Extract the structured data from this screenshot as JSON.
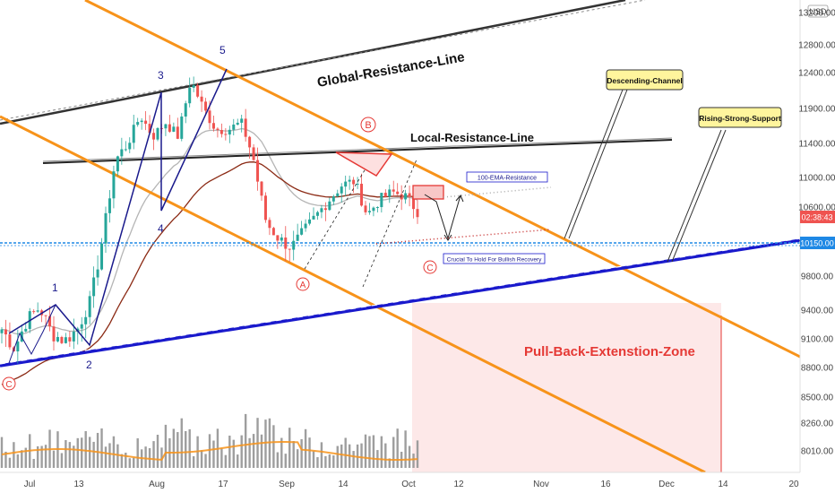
{
  "chart_data": {
    "type": "candlestick",
    "currency": "USD",
    "price_axis": {
      "ticks": [
        "13200.00",
        "12800.00",
        "12400.00",
        "11900.00",
        "11400.00",
        "11000.00",
        "10600.00",
        "10150.00",
        "9800.00",
        "9400.00",
        "9100.00",
        "8800.00",
        "8500.00",
        "8260.00",
        "8010.00"
      ],
      "current_price_tag": "02:38:43",
      "support_price_tag": "10150.00"
    },
    "time_axis": {
      "ticks": [
        "Jul",
        "13",
        "Aug",
        "17",
        "Sep",
        "14",
        "Oct",
        "12",
        "Nov",
        "16",
        "Dec",
        "14",
        "20"
      ]
    },
    "wave_labels": [
      "1",
      "2",
      "3",
      "4",
      "5"
    ],
    "abc_labels": {
      "a": "A",
      "b": "B",
      "c": "C",
      "c_left": "C"
    },
    "line_labels": {
      "global_resistance": "Global-Resistance-Line",
      "local_resistance": "Local-Resistance-Line",
      "zone": "Pull-Back-Extenstion-Zone"
    },
    "callouts": {
      "descending_channel": "Descending-Channel",
      "rising_support": "Rising-Strong-Support",
      "ema_resistance": "100-EMA-Resistance",
      "crucial_hold": "Crucial To Hold For Bullish Recovery"
    },
    "colors": {
      "up": "#26a69a",
      "down": "#ef5350",
      "channel": "#f7931a",
      "support": "#1a1acc",
      "ema100": "#b5b5b5",
      "ema200": "#8b2a14",
      "zone_fill": "#fde8e8",
      "zone_text": "#e53935",
      "callout_bg": "#fff59d"
    },
    "price_scale_points": [
      [
        13200,
        14
      ],
      [
        12800,
        50
      ],
      [
        12400,
        81
      ],
      [
        11900,
        121
      ],
      [
        11400,
        160
      ],
      [
        11000,
        198
      ],
      [
        10600,
        231
      ],
      [
        10150,
        271
      ],
      [
        9800,
        308
      ],
      [
        9400,
        346
      ],
      [
        9100,
        378
      ],
      [
        8800,
        410
      ],
      [
        8500,
        443
      ],
      [
        8260,
        472
      ],
      [
        8010,
        503
      ]
    ],
    "candles_summary": {
      "start_date": "Jun 26",
      "end_date": "Oct 2",
      "anchors": [
        [
          "Jun 26",
          9200
        ],
        [
          "Jul 1",
          9000
        ],
        [
          "Jul 7",
          9300
        ],
        [
          "Jul 10",
          9430
        ],
        [
          "Jul 14",
          9150
        ],
        [
          "Jul 17",
          9080
        ],
        [
          "Jul 21",
          9200
        ],
        [
          "Jul 24",
          9500
        ],
        [
          "Jul 27",
          10200
        ],
        [
          "Jul 29",
          11200
        ],
        [
          "Jul 31",
          11400
        ],
        [
          "Aug 2",
          11800
        ],
        [
          "Aug 5",
          11500
        ],
        [
          "Aug 9",
          11700
        ],
        [
          "Aug 12",
          11500
        ],
        [
          "Aug 17",
          12300
        ],
        [
          "Aug 20",
          11900
        ],
        [
          "Aug 24",
          11600
        ],
        [
          "Aug 28",
          11600
        ],
        [
          "Aug 31",
          11700
        ],
        [
          "Sep 2",
          11200
        ],
        [
          "Sep 4",
          10400
        ],
        [
          "Sep 6",
          10200
        ],
        [
          "Sep 8",
          10100
        ],
        [
          "Sep 10",
          10300
        ],
        [
          "Sep 13",
          10500
        ],
        [
          "Sep 15",
          10700
        ],
        [
          "Sep 18",
          10900
        ],
        [
          "Sep 20",
          10950
        ],
        [
          "Sep 23",
          10500
        ],
        [
          "Sep 25",
          10700
        ],
        [
          "Sep 28",
          10800
        ],
        [
          "Oct 1",
          10750
        ],
        [
          "Oct 2",
          10550
        ]
      ]
    }
  }
}
